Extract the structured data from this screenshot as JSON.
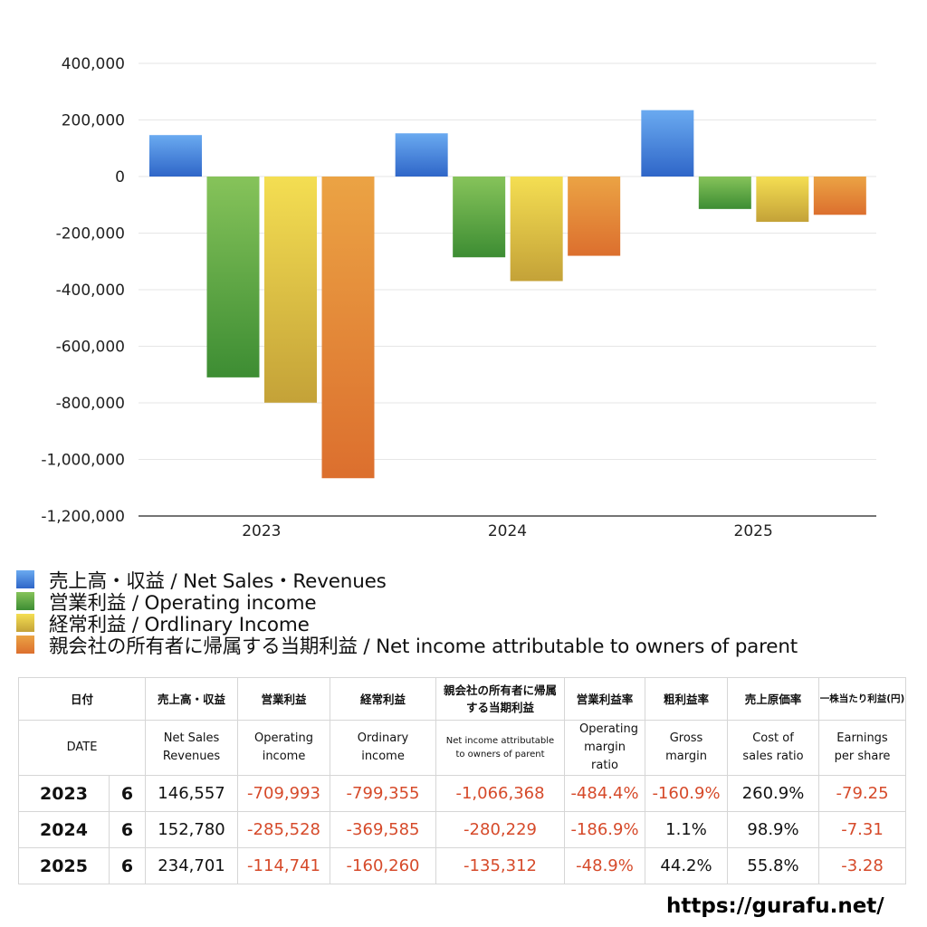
{
  "chart_data": {
    "type": "bar",
    "categories": [
      "2023",
      "2024",
      "2025"
    ],
    "series": [
      {
        "name": "売上高・収益 / Net Sales・Revenues",
        "values": [
          146557,
          152780,
          234701
        ],
        "color_top": "#6aaaf0",
        "color_bottom": "#2f66c8"
      },
      {
        "name": "営業利益 / Operating income",
        "values": [
          -709993,
          -285528,
          -114741
        ],
        "color_top": "#86c35a",
        "color_bottom": "#3d8d33"
      },
      {
        "name": "経常利益 / Ordlinary Income",
        "values": [
          -799355,
          -369585,
          -160260
        ],
        "color_top": "#f4de52",
        "color_bottom": "#c4a238"
      },
      {
        "name": "親会社の所有者に帰属する当期利益 / Net income attributable to owners of parent",
        "values": [
          -1066368,
          -280229,
          -135312
        ],
        "color_top": "#eba344",
        "color_bottom": "#dc6f2e"
      }
    ],
    "ylim": [
      -1200000,
      400000
    ],
    "yticks": [
      400000,
      200000,
      0,
      -200000,
      -400000,
      -600000,
      -800000,
      -1000000,
      -1200000
    ],
    "ytick_labels": [
      "400,000",
      "200,000",
      "0",
      "-200,000",
      "-400,000",
      "-600,000",
      "-800,000",
      "-1,000,000",
      "-1,200,000"
    ],
    "grid": true,
    "legend_position": "bottom-left"
  },
  "table": {
    "header_jp": [
      "日付",
      "売上高・収益",
      "営業利益",
      "経常利益",
      "親会社の所有者に帰属する当期利益",
      "営業利益率",
      "粗利益率",
      "売上原価率",
      "一株当たり利益(円)"
    ],
    "header_en": [
      "DATE",
      "Net Sales Revenues",
      "Operating income",
      "Ordinary income",
      "Net income attributable to owners of parent",
      "Operating margin ratio",
      "Gross margin",
      "Cost of sales ratio",
      "Earnings per share"
    ],
    "rows": [
      {
        "year": "2023",
        "month": "6",
        "values": [
          "146,557",
          "-709,993",
          "-799,355",
          "-1,066,368",
          "-484.4%",
          "-160.9%",
          "260.9%",
          "-79.25"
        ]
      },
      {
        "year": "2024",
        "month": "6",
        "values": [
          "152,780",
          "-285,528",
          "-369,585",
          "-280,229",
          "-186.9%",
          "1.1%",
          "98.9%",
          "-7.31"
        ]
      },
      {
        "year": "2025",
        "month": "6",
        "values": [
          "234,701",
          "-114,741",
          "-160,260",
          "-135,312",
          "-48.9%",
          "44.2%",
          "55.8%",
          "-3.28"
        ]
      }
    ]
  },
  "footer": {
    "site": "https://gurafu.net/"
  }
}
